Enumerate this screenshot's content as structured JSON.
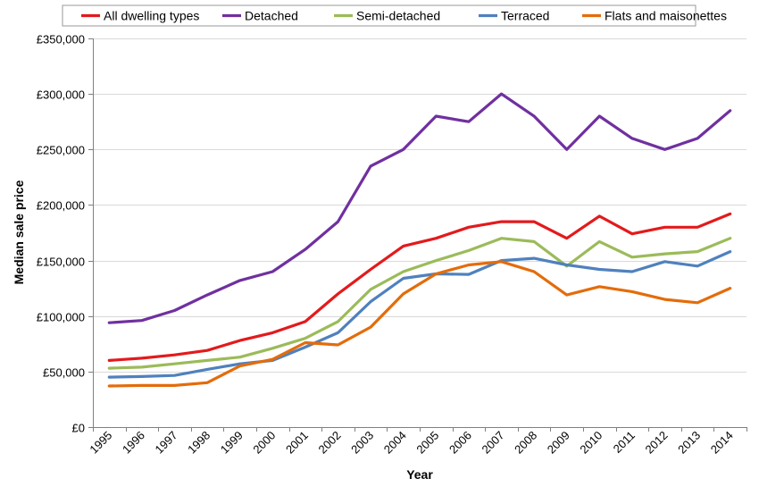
{
  "chart_data": {
    "type": "line",
    "title": "",
    "xlabel": "Year",
    "ylabel": "Median sale price",
    "categories": [
      "1995",
      "1996",
      "1997",
      "1998",
      "1999",
      "2000",
      "2001",
      "2002",
      "2003",
      "2004",
      "2005",
      "2006",
      "2007",
      "2008",
      "2009",
      "2010",
      "2011",
      "2012",
      "2013",
      "2014"
    ],
    "ylim": [
      0,
      350000
    ],
    "yticks": [
      0,
      50000,
      100000,
      150000,
      200000,
      250000,
      300000,
      350000
    ],
    "ytick_labels": [
      "£0",
      "£50,000",
      "£100,000",
      "£150,000",
      "£200,000",
      "£250,000",
      "£300,000",
      "£350,000"
    ],
    "grid": "horizontal",
    "legend_position": "top",
    "series": [
      {
        "name": "All dwelling types",
        "color": "#e31a1c",
        "values": [
          60000,
          62000,
          65000,
          69000,
          78000,
          85000,
          95000,
          120000,
          142000,
          163000,
          170000,
          180000,
          185000,
          185000,
          170000,
          190000,
          174000,
          180000,
          180000,
          192000
        ]
      },
      {
        "name": "Detached",
        "color": "#7030a0",
        "values": [
          94000,
          96000,
          105000,
          119000,
          132000,
          140000,
          160000,
          185000,
          235000,
          250000,
          280000,
          275000,
          300000,
          280000,
          250000,
          280000,
          260000,
          250000,
          260000,
          285000
        ]
      },
      {
        "name": "Semi-detached",
        "color": "#9bbb59",
        "values": [
          53000,
          54000,
          57000,
          60000,
          63000,
          71000,
          80000,
          95000,
          124000,
          140000,
          150000,
          159000,
          170000,
          167000,
          145000,
          167000,
          153000,
          156000,
          158000,
          170000
        ]
      },
      {
        "name": "Terraced",
        "color": "#4f81bd",
        "values": [
          45000,
          45500,
          46500,
          52000,
          57000,
          60000,
          72000,
          85000,
          113000,
          134000,
          138000,
          137500,
          150000,
          152000,
          146000,
          142000,
          140000,
          149000,
          145000,
          158000
        ]
      },
      {
        "name": "Flats and maisonettes",
        "color": "#e46c0a",
        "values": [
          37000,
          37500,
          37500,
          40000,
          55000,
          61000,
          76000,
          74000,
          90000,
          120000,
          138000,
          146000,
          149000,
          140000,
          119000,
          126500,
          122000,
          115000,
          112000,
          125000
        ]
      }
    ]
  }
}
